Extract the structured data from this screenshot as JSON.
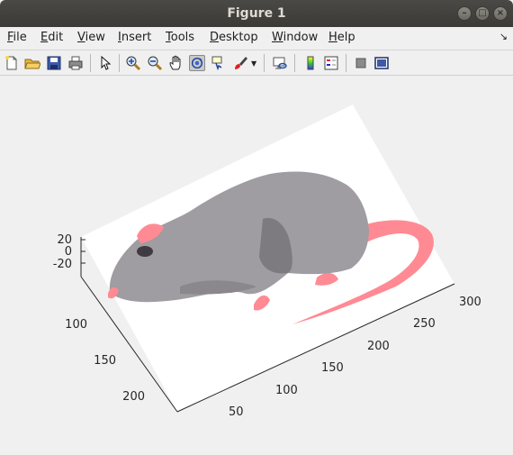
{
  "window": {
    "title": "Figure 1",
    "controls": [
      "minimize",
      "maximize",
      "close"
    ]
  },
  "menu": [
    {
      "label": "File",
      "accel": "F"
    },
    {
      "label": "Edit",
      "accel": "E"
    },
    {
      "label": "View",
      "accel": "V"
    },
    {
      "label": "Insert",
      "accel": "I"
    },
    {
      "label": "Tools",
      "accel": "T"
    },
    {
      "label": "Desktop",
      "accel": "D"
    },
    {
      "label": "Window",
      "accel": "W"
    },
    {
      "label": "Help",
      "accel": "H"
    }
  ],
  "toolbar": {
    "buttons": [
      {
        "name": "new-figure-icon"
      },
      {
        "name": "open-file-icon"
      },
      {
        "name": "save-icon"
      },
      {
        "name": "print-icon"
      },
      {
        "name": "edit-plot-arrow-icon"
      },
      {
        "name": "zoom-in-icon"
      },
      {
        "name": "zoom-out-icon"
      },
      {
        "name": "pan-hand-icon"
      },
      {
        "name": "rotate-3d-icon",
        "active": true
      },
      {
        "name": "data-cursor-icon"
      },
      {
        "name": "brush-icon"
      },
      {
        "name": "link-plot-icon"
      },
      {
        "name": "colorbar-icon"
      },
      {
        "name": "legend-icon"
      },
      {
        "name": "hide-plot-tools-icon"
      },
      {
        "name": "show-plot-tools-icon"
      }
    ]
  },
  "axes": {
    "z_ticks": [
      "20",
      "0",
      "-20"
    ],
    "y_ticks": [
      "100",
      "150",
      "200"
    ],
    "x_ticks": [
      "50",
      "100",
      "150",
      "200",
      "250",
      "300"
    ]
  },
  "figure": {
    "content": "3D surface image of a rat",
    "colors": {
      "body": "#9f9ca2",
      "body_shadow": "#7d7a80",
      "pink": "#ff8a93",
      "eye": "#3e3b42",
      "box": "#ffffff",
      "bg": "#f0f0f0"
    }
  }
}
